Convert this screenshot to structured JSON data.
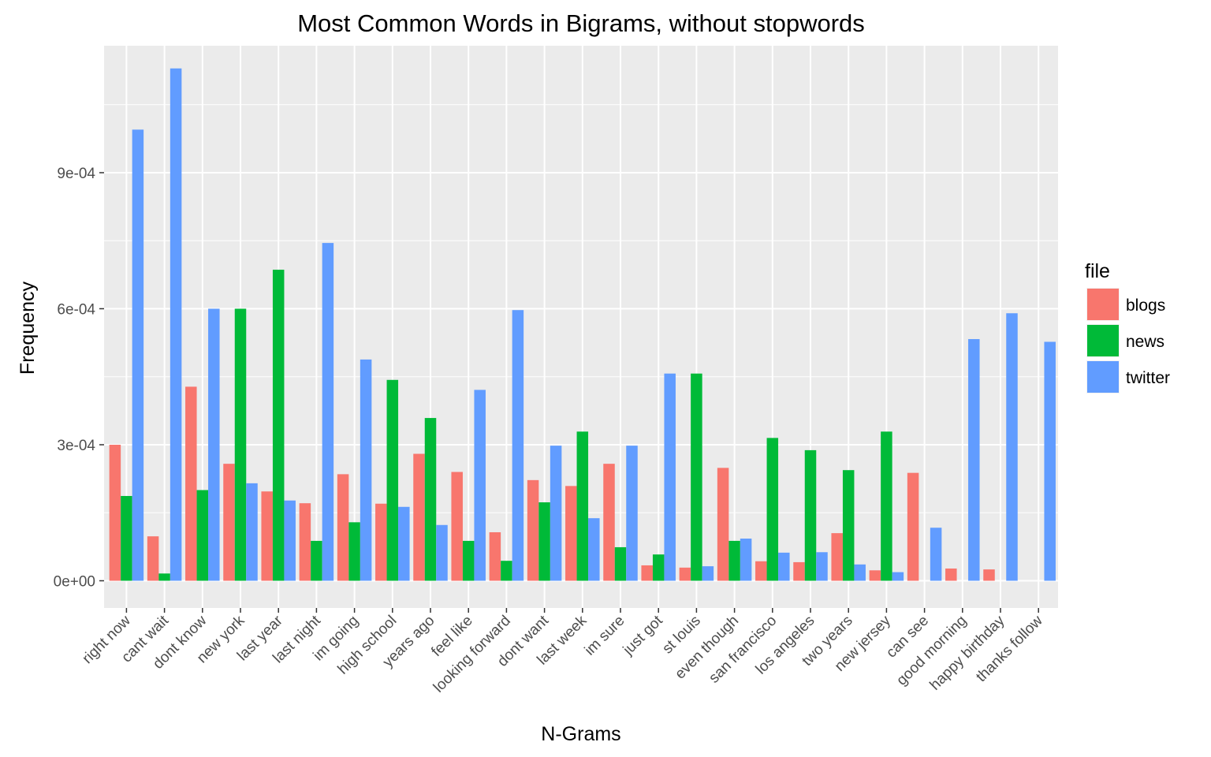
{
  "chart_data": {
    "type": "bar",
    "title": "Most Common Words in Bigrams, without stopwords",
    "xlabel": "N-Grams",
    "ylabel": "Frequency",
    "ylim": [
      -6e-05,
      0.00118
    ],
    "y_ticks": [
      {
        "value": 0,
        "label": "0e+00"
      },
      {
        "value": 0.0003,
        "label": "3e-04"
      },
      {
        "value": 0.0006,
        "label": "6e-04"
      },
      {
        "value": 0.0009,
        "label": "9e-04"
      }
    ],
    "grid": true,
    "legend": {
      "title": "file",
      "position": "right"
    },
    "categories": [
      "right now",
      "cant wait",
      "dont know",
      "new york",
      "last year",
      "last night",
      "im going",
      "high school",
      "years ago",
      "feel like",
      "looking forward",
      "dont want",
      "last week",
      "im sure",
      "just got",
      "st louis",
      "even though",
      "san francisco",
      "los angeles",
      "two years",
      "new jersey",
      "can see",
      "good morning",
      "happy birthday",
      "thanks follow"
    ],
    "series": [
      {
        "name": "blogs",
        "color": "#F8766D",
        "values": [
          0.0003,
          9.8e-05,
          0.000428,
          0.000258,
          0.000197,
          0.000171,
          0.000235,
          0.00017,
          0.00028,
          0.00024,
          0.000107,
          0.000222,
          0.000209,
          0.000258,
          3.4e-05,
          2.9e-05,
          0.000249,
          4.3e-05,
          4.1e-05,
          0.000105,
          2.3e-05,
          0.000238,
          2.7e-05,
          2.5e-05,
          0
        ]
      },
      {
        "name": "news",
        "color": "#00BA38",
        "values": [
          0.000187,
          1.6e-05,
          0.0002,
          0.0006,
          0.000686,
          8.8e-05,
          0.000129,
          0.000443,
          0.000359,
          8.8e-05,
          4.4e-05,
          0.000173,
          0.000329,
          7.4e-05,
          5.8e-05,
          0.000457,
          8.8e-05,
          0.000315,
          0.000288,
          0.000244,
          0.000329,
          0,
          0,
          0,
          0
        ]
      },
      {
        "name": "twitter",
        "color": "#619CFF",
        "values": [
          0.000995,
          0.00113,
          0.0006,
          0.000215,
          0.000177,
          0.000745,
          0.000488,
          0.000163,
          0.000123,
          0.000421,
          0.000597,
          0.000298,
          0.000138,
          0.000298,
          0.000457,
          3.2e-05,
          9.3e-05,
          6.2e-05,
          6.3e-05,
          3.6e-05,
          1.9e-05,
          0.000117,
          0.000533,
          0.00059,
          0.000527
        ]
      }
    ]
  }
}
